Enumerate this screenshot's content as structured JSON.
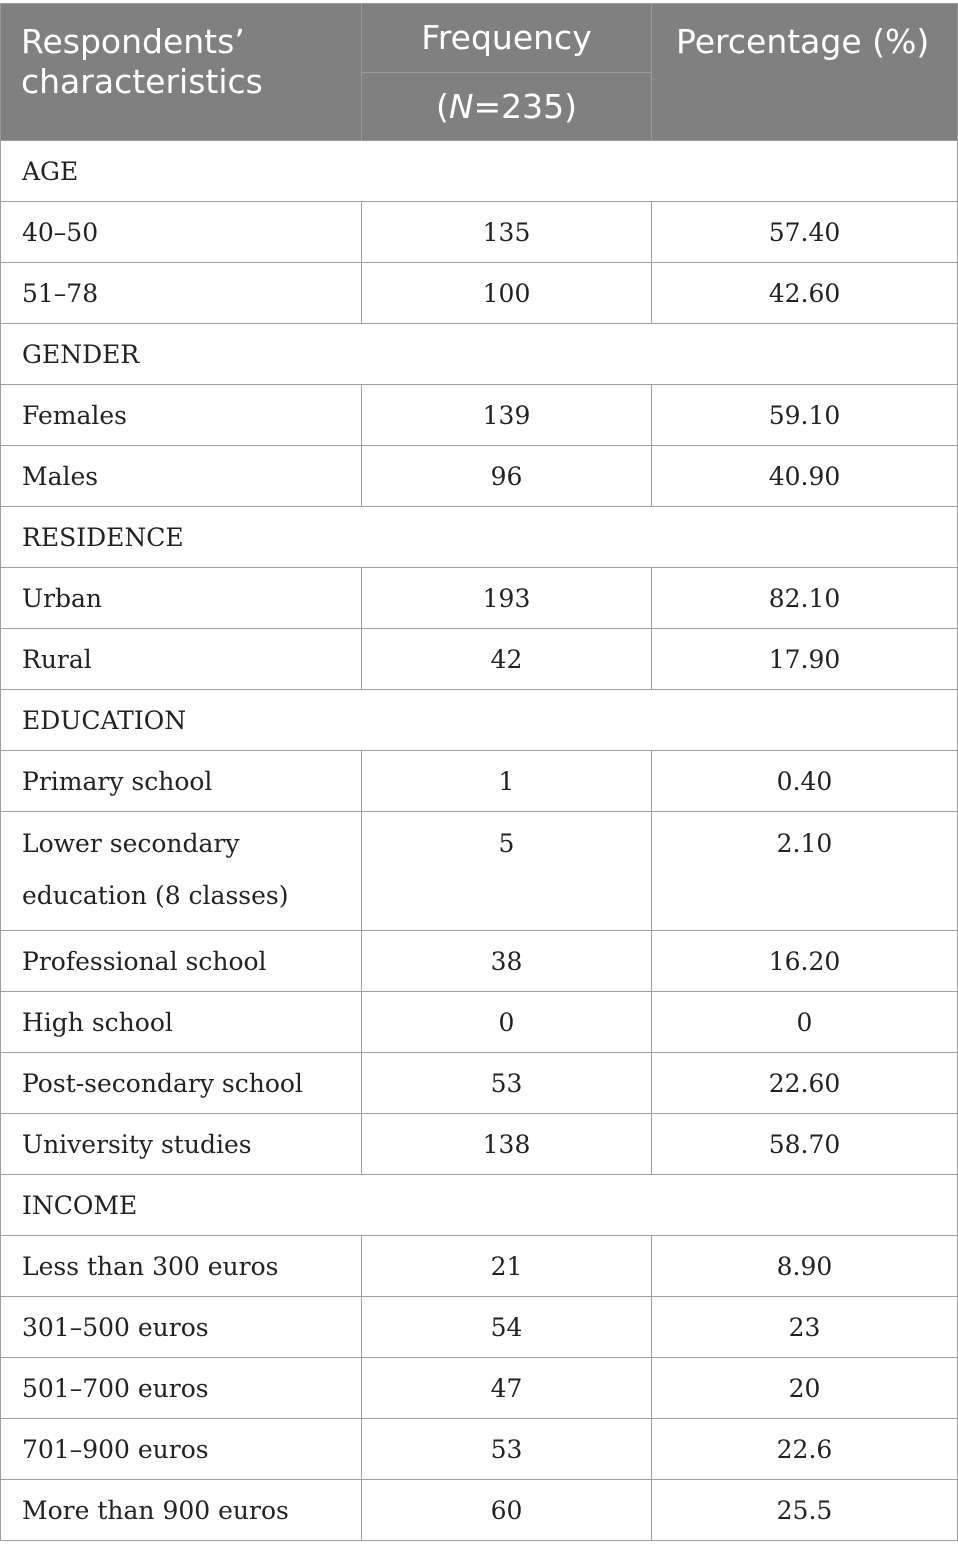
{
  "header": {
    "col1": "Respondents’ characteristics",
    "col2_line1": "Frequency",
    "col2_line2_prefix": "(",
    "col2_line2_n": "N",
    "col2_line2_rest": "=235)",
    "col3": "Percentage (%)"
  },
  "sections": [
    {
      "title": "AGE",
      "rows": [
        {
          "label": "40–50",
          "frequency": "135",
          "percentage": "57.40"
        },
        {
          "label": "51–78",
          "frequency": "100",
          "percentage": "42.60"
        }
      ]
    },
    {
      "title": "GENDER",
      "rows": [
        {
          "label": "Females",
          "frequency": "139",
          "percentage": "59.10"
        },
        {
          "label": "Males",
          "frequency": "96",
          "percentage": "40.90"
        }
      ]
    },
    {
      "title": "RESIDENCE",
      "rows": [
        {
          "label": "Urban",
          "frequency": "193",
          "percentage": "82.10"
        },
        {
          "label": "Rural",
          "frequency": "42",
          "percentage": "17.90"
        }
      ]
    },
    {
      "title": "EDUCATION",
      "rows": [
        {
          "label": "Primary school",
          "frequency": "1",
          "percentage": "0.40"
        },
        {
          "label": "Lower secondary education (8 classes)",
          "frequency": "5",
          "percentage": "2.10"
        },
        {
          "label": "Professional school",
          "frequency": "38",
          "percentage": "16.20"
        },
        {
          "label": "High school",
          "frequency": "0",
          "percentage": "0"
        },
        {
          "label": "Post-secondary school",
          "frequency": "53",
          "percentage": "22.60"
        },
        {
          "label": "University studies",
          "frequency": "138",
          "percentage": "58.70"
        }
      ]
    },
    {
      "title": "INCOME",
      "rows": [
        {
          "label": "Less than 300 euros",
          "frequency": "21",
          "percentage": "8.90"
        },
        {
          "label": "301–500 euros",
          "frequency": "54",
          "percentage": "23"
        },
        {
          "label": "501–700 euros",
          "frequency": "47",
          "percentage": "20"
        },
        {
          "label": "701–900 euros",
          "frequency": "53",
          "percentage": "22.6"
        },
        {
          "label": "More than 900 euros",
          "frequency": "60",
          "percentage": "25.5"
        }
      ]
    }
  ]
}
